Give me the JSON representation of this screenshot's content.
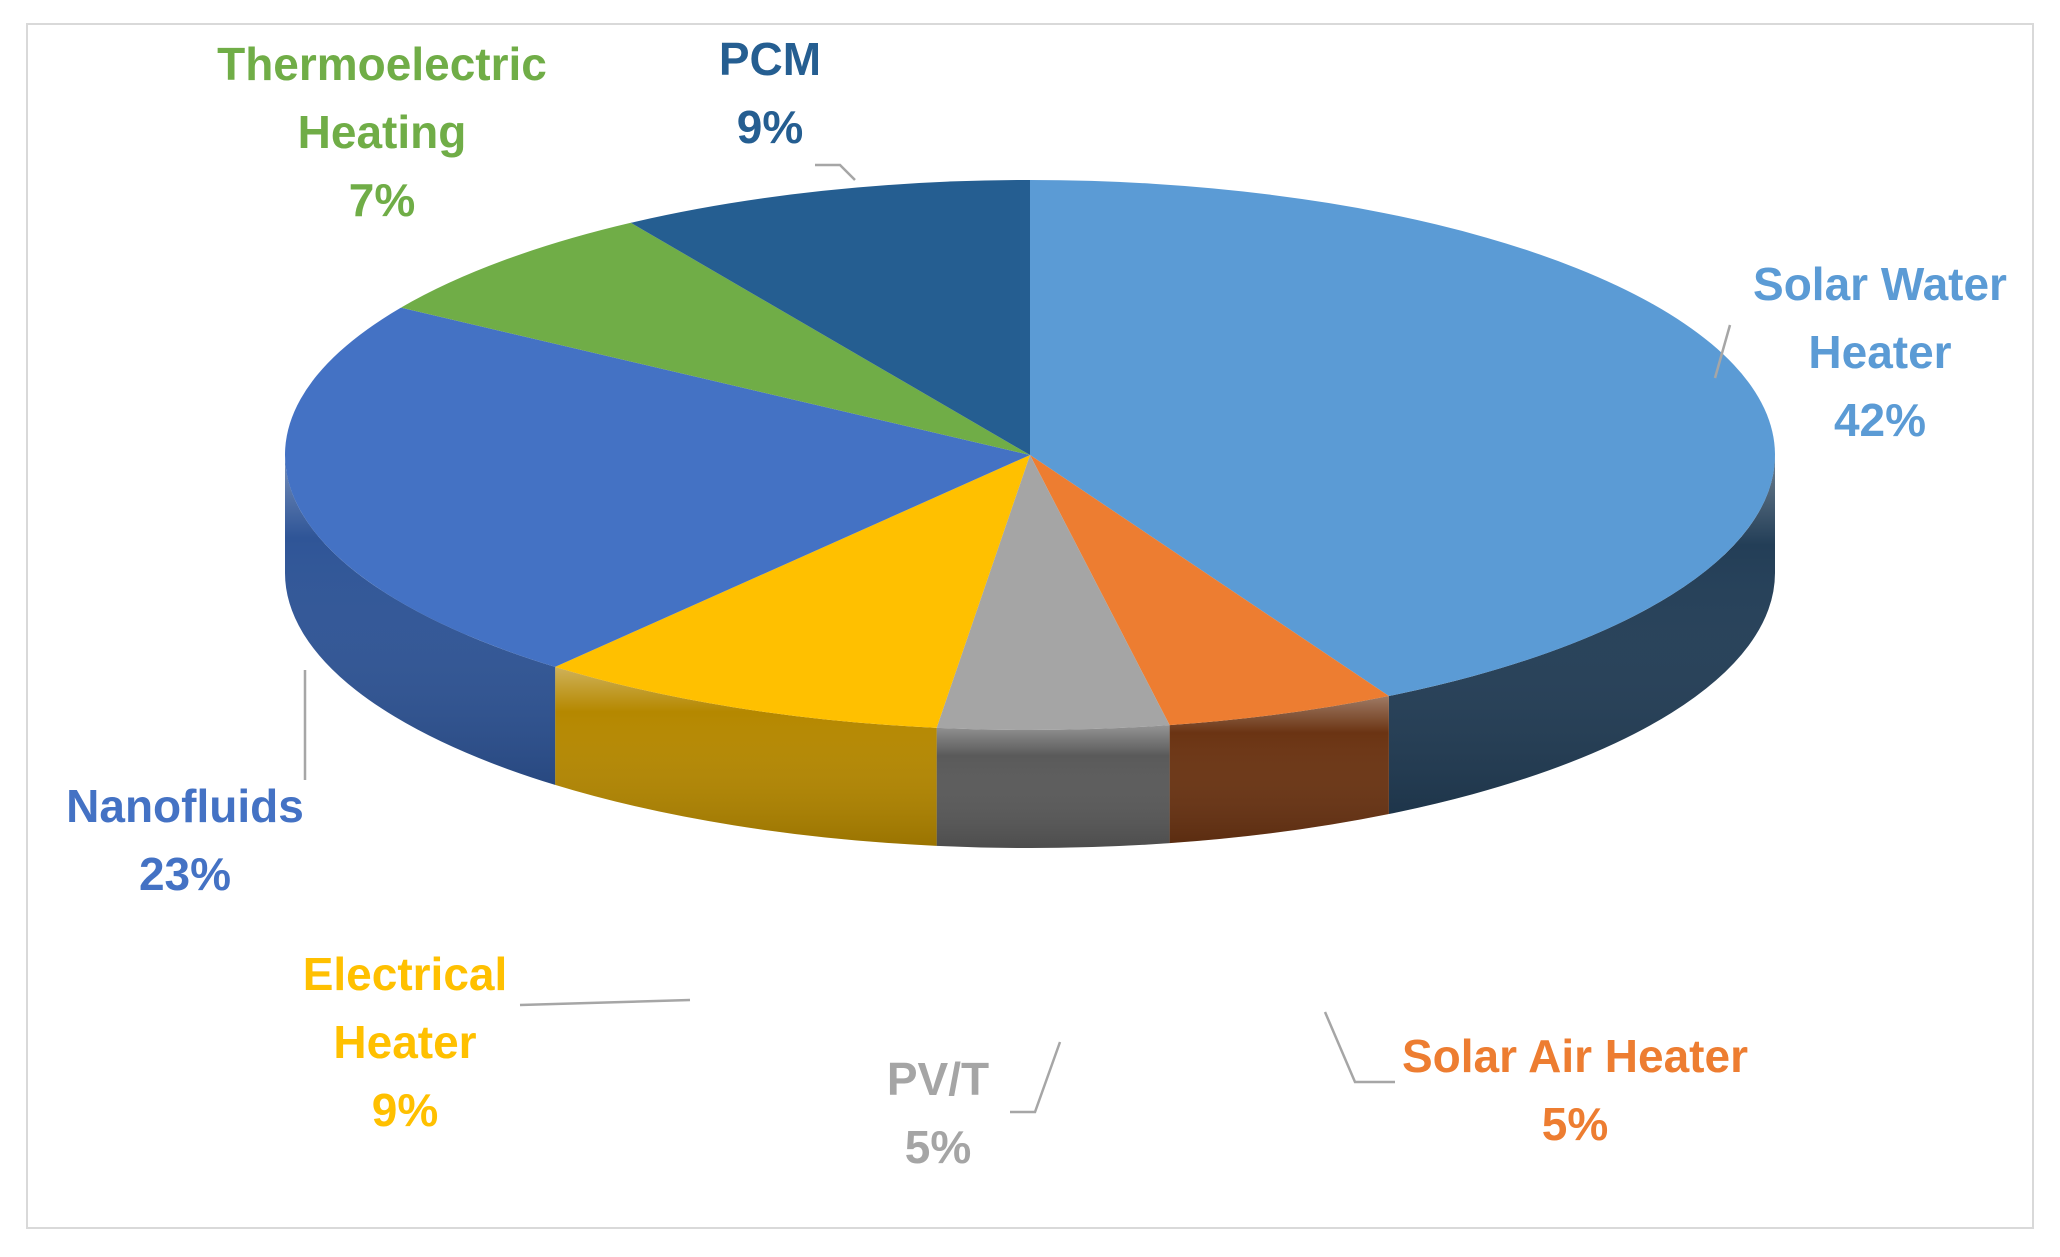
{
  "chart_data": {
    "type": "pie",
    "style": "3d",
    "title": "",
    "slices": [
      {
        "name": "Solar Water Heater",
        "value": 42,
        "pct_label": "42%",
        "color": "#5B9BD5",
        "side_color": "#233E57"
      },
      {
        "name": "Solar Air Heater",
        "value": 5,
        "pct_label": "5%",
        "color": "#ED7D31",
        "side_color": "#6B3413"
      },
      {
        "name": "PV/T",
        "value": 5,
        "pct_label": "5%",
        "color": "#A5A5A5",
        "side_color": "#5A5A5A"
      },
      {
        "name": "Electrical Heater",
        "value": 9,
        "pct_label": "9%",
        "color": "#FFC000",
        "side_color": "#B58800"
      },
      {
        "name": "Nanofluids",
        "value": 23,
        "pct_label": "23%",
        "color": "#4472C4",
        "side_color": "#2F5597"
      },
      {
        "name": "Thermoelectric Heating",
        "value": 7,
        "pct_label": "7%",
        "color": "#70AD47",
        "side_color": "#4B7A2E"
      },
      {
        "name": "PCM",
        "value": 9,
        "pct_label": "9%",
        "color": "#255E91",
        "side_color": "#193F61"
      }
    ],
    "legend": "none",
    "data_labels": "outside with leader lines"
  }
}
